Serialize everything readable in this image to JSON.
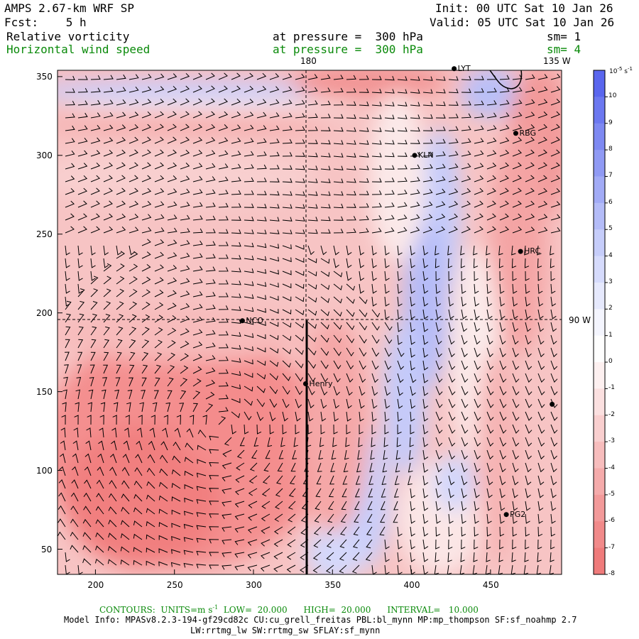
{
  "header": {
    "model": "AMPS 2.67-km WRF SP",
    "fcst": "Fcst:    5 h",
    "init": "Init: 00 UTC Sat 10 Jan 26",
    "valid": "Valid: 05 UTC Sat 10 Jan 26",
    "field1_name": "Relative vorticity",
    "field1_level": "at pressure =  300 hPa",
    "field1_sm": "sm= 1",
    "field2_name": "Horizontal wind speed",
    "field2_level": "at pressure =  300 hPa",
    "field2_sm": "sm= 4"
  },
  "map_labels": {
    "lon180": "180",
    "lon135w": "135 W",
    "lon90w": "90 W",
    "stations": [
      {
        "name": "LYT",
        "x": 427,
        "y": 355
      },
      {
        "name": "RBG",
        "x": 466,
        "y": 314
      },
      {
        "name": "KLN",
        "x": 402,
        "y": 300
      },
      {
        "name": "HRC",
        "x": 469,
        "y": 239
      },
      {
        "name": "NCO",
        "x": 293,
        "y": 195
      },
      {
        "name": "Henry",
        "x": 333,
        "y": 155
      },
      {
        "name": "PG2",
        "x": 460,
        "y": 72
      },
      {
        "name": "",
        "x": 489,
        "y": 142
      }
    ]
  },
  "axes": {
    "x_ticks": [
      "200",
      "250",
      "300",
      "350",
      "400",
      "450"
    ],
    "y_ticks": [
      "350",
      "300",
      "250",
      "200",
      "150",
      "100",
      "50"
    ]
  },
  "colorbar": {
    "unit": "10",
    "unit_exp": "-5",
    "unit_tail": " s",
    "unit_tail_exp": "-1",
    "labels": [
      "10",
      "9",
      "8",
      "7",
      "6",
      "5",
      "4",
      "3",
      "2",
      "1",
      "0",
      "-1",
      "-2",
      "-3",
      "-4",
      "-5",
      "-6",
      "-7",
      "-8"
    ],
    "colors": [
      "#5a66ee",
      "#6c78f0",
      "#7e89f2",
      "#909af4",
      "#a2abf6",
      "#b4bcf8",
      "#c6cdfa",
      "#d6dbfc",
      "#e6e9fd",
      "#f4f5fe",
      "#fefefe",
      "#fdf0f0",
      "#fbe0e0",
      "#f9cfcf",
      "#f7bdbd",
      "#f5abab",
      "#f39a9a",
      "#f18a8a",
      "#ef7b7b"
    ]
  },
  "footer": {
    "contours": "CONTOURS:  UNITS=m s",
    "contours_exp": "-1",
    "contours_rest": "  LOW=  20.000      HIGH=  20.000      INTERVAL=   10.000",
    "model_info": "Model Info: MPASv8.2.3-194-gf29cd82c CU:cu_grell_freitas PBL:bl_mynn MP:mp_thompson SF:sf_noahmp 2.7",
    "model_info2": "LW:rrtmg_lw SW:rrtmg_sw SFLAY:sf_mynn"
  },
  "colors": {
    "neg_strong": "#f07a7a",
    "pos_strong": "#8f97f2",
    "text_green": "#0a8a0a"
  }
}
